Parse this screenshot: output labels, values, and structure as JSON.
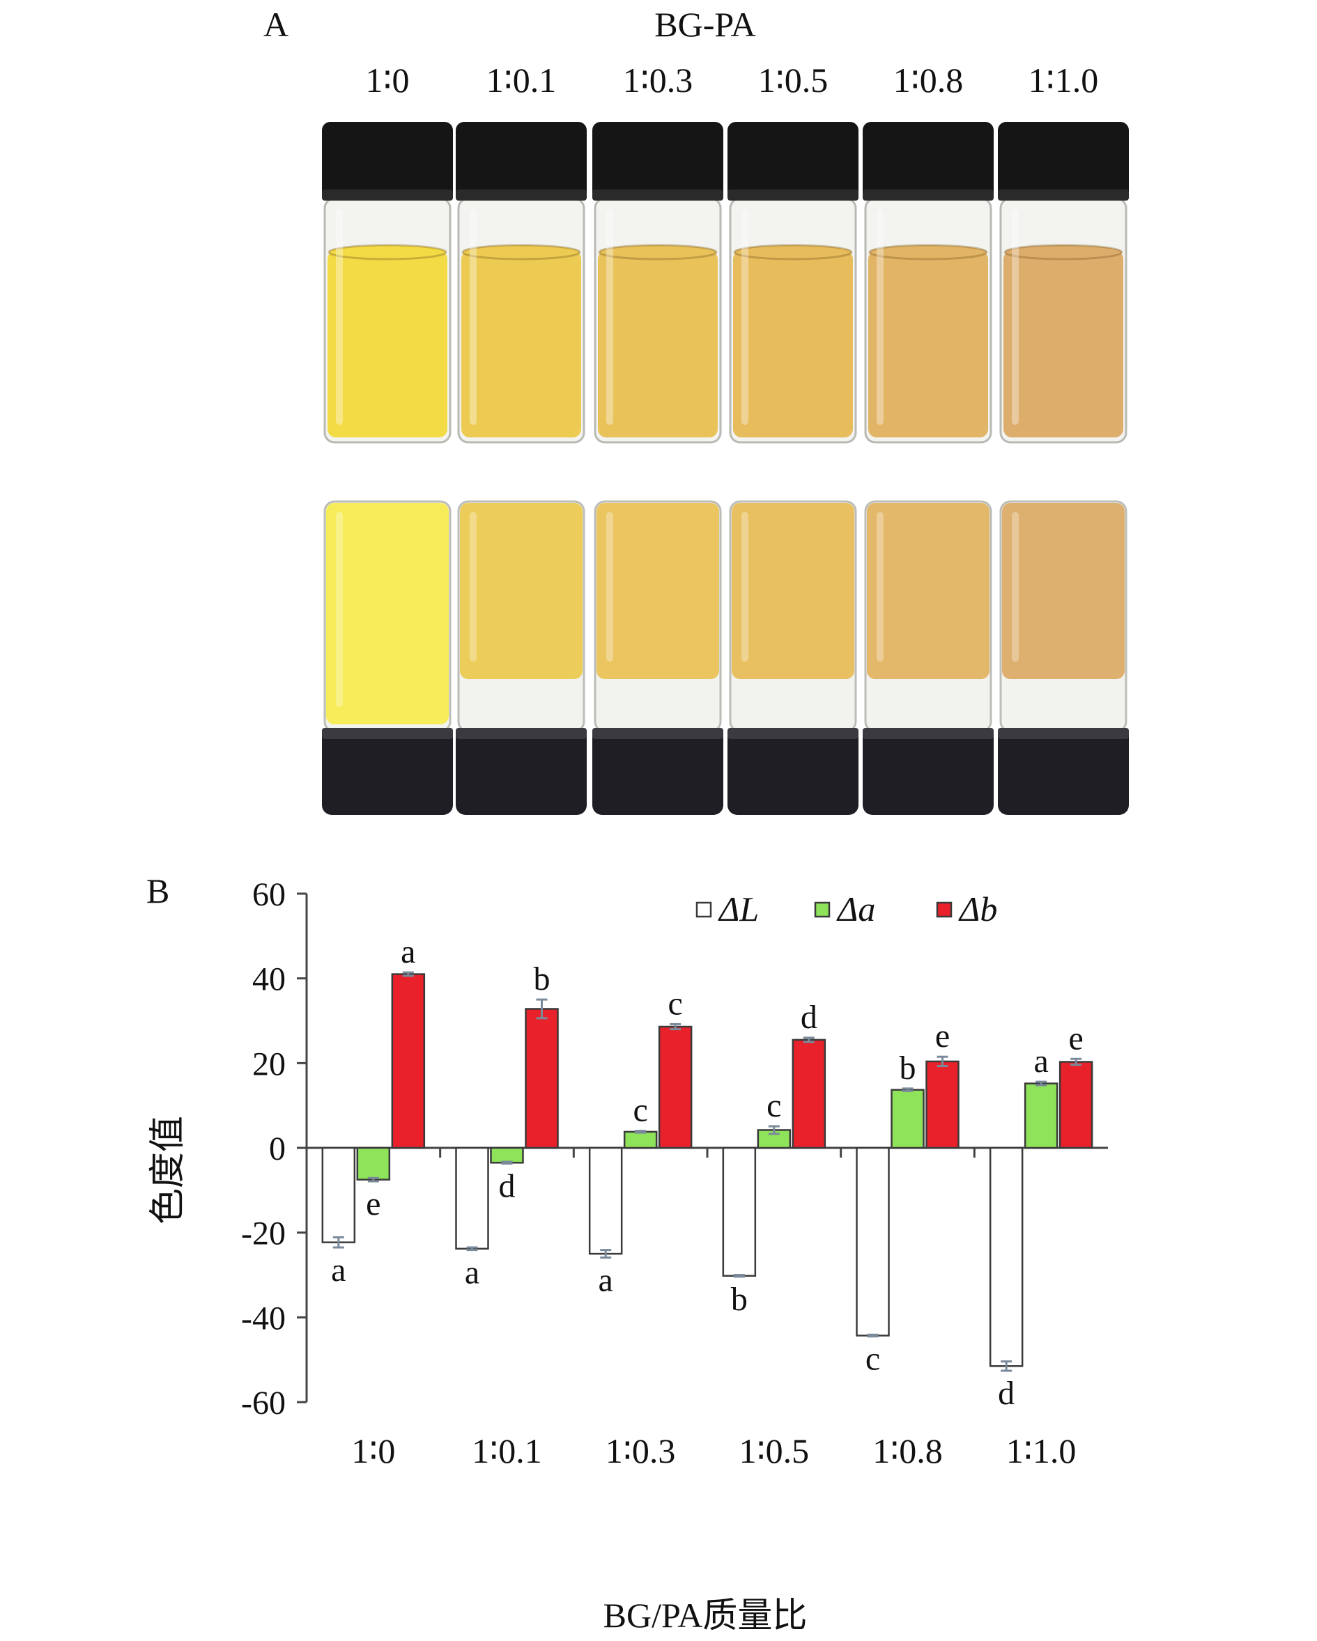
{
  "panel_a": {
    "label": "A",
    "heading": "BG-PA",
    "ratios": [
      "1∶0",
      "1∶0.1",
      "1∶0.3",
      "1∶0.5",
      "1∶0.8",
      "1∶1.0"
    ],
    "vials": [
      {
        "liquid": "#F3DB45",
        "cap": "#151515"
      },
      {
        "liquid": "#EDCB52",
        "cap": "#151515"
      },
      {
        "liquid": "#E9C25A",
        "cap": "#151515"
      },
      {
        "liquid": "#E7BC5C",
        "cap": "#151515"
      },
      {
        "liquid": "#E2B466",
        "cap": "#151515"
      },
      {
        "liquid": "#DDAD6C",
        "cap": "#151515"
      }
    ],
    "inverted_liquid": [
      "#F6EC5A",
      "#EDCD5A",
      "#EAC560",
      "#E8C062",
      "#E4B86A",
      "#DEB070"
    ]
  },
  "chart_data": {
    "type": "bar",
    "panel_label": "B",
    "categories": [
      "1∶0",
      "1∶0.1",
      "1∶0.3",
      "1∶0.5",
      "1∶0.8",
      "1∶1.0"
    ],
    "series": [
      {
        "name": "ΔL",
        "color": "#FFFFFF",
        "values": [
          -22.3,
          -23.8,
          -25.0,
          -30.2,
          -44.3,
          -51.5
        ],
        "errors": [
          1.2,
          0.3,
          0.9,
          0.2,
          0.2,
          1.1
        ],
        "letters": [
          "a",
          "a",
          "a",
          "b",
          "c",
          "d"
        ]
      },
      {
        "name": "Δa",
        "color": "#8EE35A",
        "values": [
          -7.5,
          -3.5,
          3.8,
          4.2,
          13.7,
          15.2
        ],
        "errors": [
          0.4,
          0.2,
          0.2,
          0.9,
          0.3,
          0.4
        ],
        "letters": [
          "e",
          "d",
          "c",
          "c",
          "b",
          "a"
        ]
      },
      {
        "name": "Δb",
        "color": "#E8212A",
        "values": [
          41.0,
          32.8,
          28.6,
          25.5,
          20.4,
          20.3
        ],
        "errors": [
          0.4,
          2.2,
          0.6,
          0.5,
          1.1,
          0.7
        ],
        "letters": [
          "a",
          "b",
          "c",
          "d",
          "e",
          "e"
        ]
      }
    ],
    "yticks": [
      60,
      40,
      20,
      0,
      -20,
      -40,
      -60
    ],
    "ylim": [
      -60,
      60
    ],
    "ylabel": "色度值",
    "xlabel": "BG/PA质量比",
    "legend_position": "top-right"
  }
}
